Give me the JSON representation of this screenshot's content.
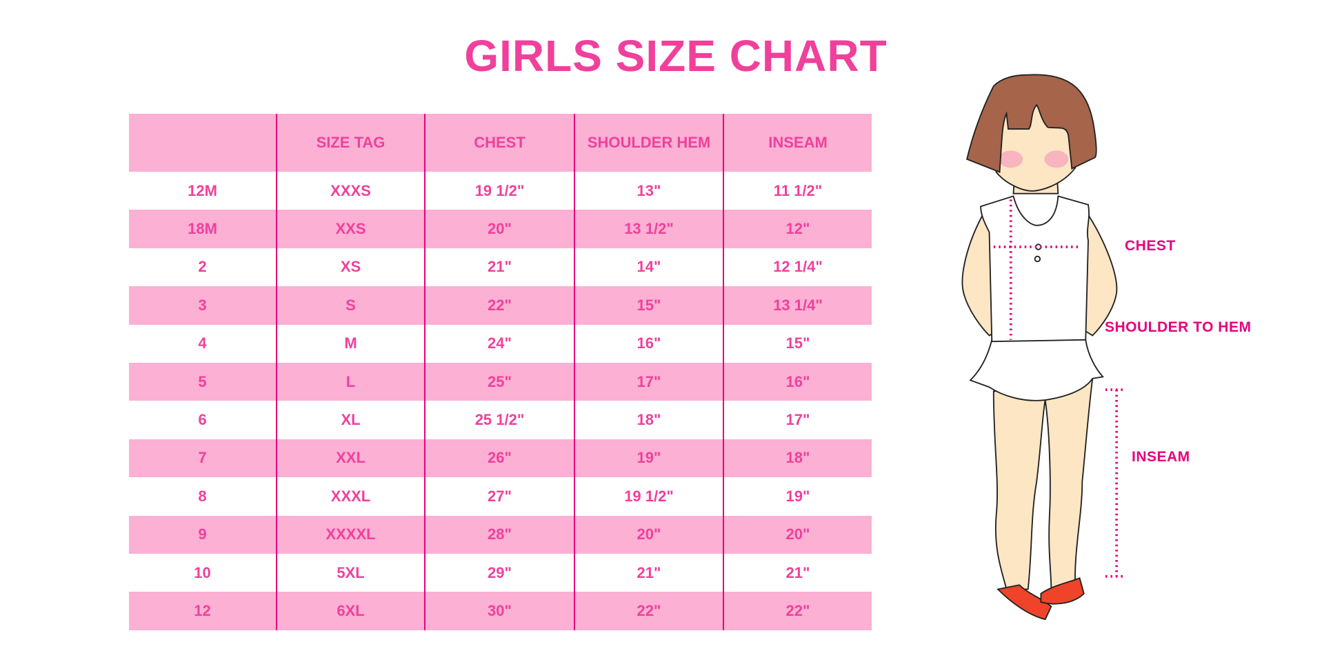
{
  "title": "GIRLS SIZE CHART",
  "colors": {
    "pink_band": "#fbb0d4",
    "text": "#f0409c",
    "divider": "#e6007e"
  },
  "table": {
    "headers": [
      "",
      "SIZE TAG",
      "CHEST",
      "SHOULDER HEM",
      "INSEAM"
    ],
    "rows": [
      [
        "12M",
        "XXXS",
        "19 1/2\"",
        "13\"",
        "11 1/2\""
      ],
      [
        "18M",
        "XXS",
        "20\"",
        "13 1/2\"",
        "12\""
      ],
      [
        "2",
        "XS",
        "21\"",
        "14\"",
        "12 1/4\""
      ],
      [
        "3",
        "S",
        "22\"",
        "15\"",
        "13 1/4\""
      ],
      [
        "4",
        "M",
        "24\"",
        "16\"",
        "15\""
      ],
      [
        "5",
        "L",
        "25\"",
        "17\"",
        "16\""
      ],
      [
        "6",
        "XL",
        "25 1/2\"",
        "18\"",
        "17\""
      ],
      [
        "7",
        "XXL",
        "26\"",
        "19\"",
        "18\""
      ],
      [
        "8",
        "XXXL",
        "27\"",
        "19 1/2\"",
        "19\""
      ],
      [
        "9",
        "XXXXL",
        "28\"",
        "20\"",
        "20\""
      ],
      [
        "10",
        "5XL",
        "29\"",
        "21\"",
        "21\""
      ],
      [
        "12",
        "6XL",
        "30\"",
        "22\"",
        "22\""
      ]
    ]
  },
  "figure": {
    "labels": {
      "chest": "CHEST",
      "shoulder_to_hem": "SHOULDER TO HEM",
      "inseam": "INSEAM"
    }
  }
}
